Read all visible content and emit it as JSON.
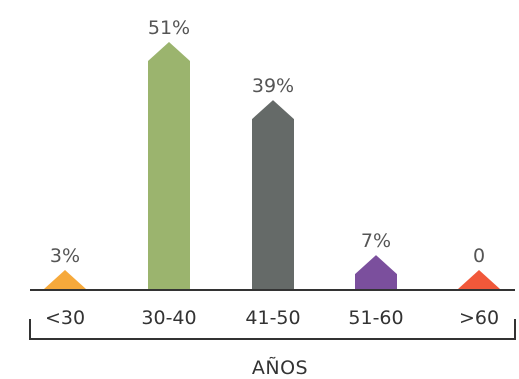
{
  "chart_data": {
    "type": "bar",
    "categories": [
      "<30",
      "30-40",
      "41-50",
      "51-60",
      ">60"
    ],
    "values": [
      3,
      51,
      39,
      7,
      0
    ],
    "value_labels": [
      "3%",
      "51%",
      "39%",
      "7%",
      "0"
    ],
    "colors": [
      "#f6a93b",
      "#9bb46e",
      "#656a68",
      "#7b4f9d",
      "#f1583a"
    ],
    "xlabel": "AÑOS",
    "ylim": [
      0,
      51
    ],
    "grid": false,
    "legend": "none",
    "bar_shape": "pentagon-arrow"
  }
}
